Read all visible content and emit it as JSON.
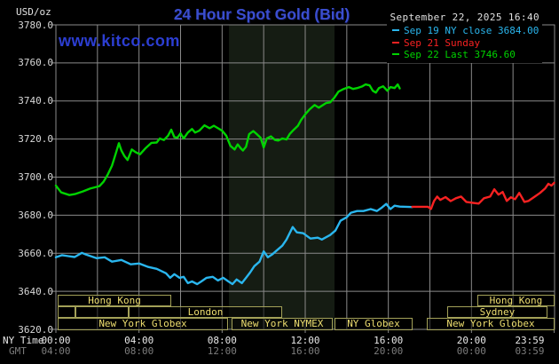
{
  "header": {
    "unit": "USD/oz",
    "title": "24 Hour Spot Gold (Bid)",
    "datetime": "September 22, 2025 16:40",
    "watermark": "www.kitco.com"
  },
  "legend": [
    {
      "label": "Sep 19 NY close 3684.00",
      "color": "#2ab6ee"
    },
    {
      "label": "Sep 21 Sunday",
      "color": "#f82222"
    },
    {
      "label": "Sep 22 Last 3746.60",
      "color": "#00d300"
    }
  ],
  "axes": {
    "ny_label": "NY Time",
    "gmt_label": "GMT"
  },
  "colors": {
    "background": "#000000",
    "grid": "#8a8a8a",
    "nymex_band": "#151c13",
    "session_border": "#a3a158",
    "session_text": "#eede70",
    "title_blue": "#3a4ed0",
    "watermark_blue": "#2c3ed2"
  },
  "chart_data": {
    "type": "line",
    "title": "24 Hour Spot Gold (Bid)",
    "ylabel": "USD/oz",
    "ylim": [
      3620,
      3780
    ],
    "xlim_hours": [
      0,
      24
    ],
    "grid": true,
    "y_axis": {
      "tick_values": [
        3780,
        3760,
        3740,
        3720,
        3700,
        3680,
        3660,
        3640,
        3620
      ],
      "tick_labels": [
        "3780.0",
        "3760.0",
        "3740.0",
        "3720.0",
        "3700.0",
        "3680.0",
        "3660.0",
        "3640.0",
        "3620.0"
      ],
      "grid_interval": 20
    },
    "x_axis": {
      "tick_hours": [
        0,
        4,
        8,
        12,
        16,
        20,
        23.983
      ],
      "ny_time_ticks": [
        "00:00",
        "04:00",
        "08:00",
        "12:00",
        "16:00",
        "20:00",
        "23:59"
      ],
      "gmt_ticks": [
        "04:00",
        "08:00",
        "12:00",
        "16:00",
        "20:00",
        "00:00",
        "03:59"
      ],
      "grid_interval_hours": 2
    },
    "nymex_session_band": {
      "start_hour": 8.33,
      "end_hour": 13.41
    },
    "series": [
      {
        "name": "Sep 19 NY close",
        "close_value": 3684.0,
        "color": "#2ab6ee",
        "points": [
          [
            0,
            3657.9
          ],
          [
            0.3,
            3659
          ],
          [
            0.6,
            3658.5
          ],
          [
            0.9,
            3658
          ],
          [
            1.25,
            3660.2
          ],
          [
            1.45,
            3659.3
          ],
          [
            1.95,
            3657.4
          ],
          [
            2.35,
            3657.9
          ],
          [
            2.7,
            3655.6
          ],
          [
            3.15,
            3656.5
          ],
          [
            3.6,
            3654.2
          ],
          [
            4,
            3654.6
          ],
          [
            4.45,
            3652.8
          ],
          [
            4.85,
            3651.8
          ],
          [
            5.3,
            3649.5
          ],
          [
            5.5,
            3647.1
          ],
          [
            5.7,
            3649
          ],
          [
            5.95,
            3647.1
          ],
          [
            6.15,
            3647.6
          ],
          [
            6.35,
            3644.3
          ],
          [
            6.55,
            3645.2
          ],
          [
            6.8,
            3643.8
          ],
          [
            7,
            3645.2
          ],
          [
            7.25,
            3647.1
          ],
          [
            7.55,
            3647.6
          ],
          [
            7.8,
            3645.7
          ],
          [
            8.05,
            3647.1
          ],
          [
            8.3,
            3645.2
          ],
          [
            8.5,
            3643.8
          ],
          [
            8.7,
            3646.2
          ],
          [
            8.95,
            3644.3
          ],
          [
            9.15,
            3647.1
          ],
          [
            9.35,
            3649.9
          ],
          [
            9.55,
            3653.2
          ],
          [
            9.8,
            3655.6
          ],
          [
            10,
            3661
          ],
          [
            10.2,
            3657.9
          ],
          [
            10.4,
            3659.3
          ],
          [
            10.6,
            3661.2
          ],
          [
            10.9,
            3664
          ],
          [
            11.1,
            3667.2
          ],
          [
            11.4,
            3673.8
          ],
          [
            11.6,
            3671
          ],
          [
            11.9,
            3670.5
          ],
          [
            12.25,
            3667.7
          ],
          [
            12.6,
            3668.2
          ],
          [
            12.8,
            3667.2
          ],
          [
            13.2,
            3669.6
          ],
          [
            13.45,
            3671.9
          ],
          [
            13.7,
            3677.1
          ],
          [
            14,
            3678.9
          ],
          [
            14.2,
            3681.3
          ],
          [
            14.5,
            3682.2
          ],
          [
            14.8,
            3682.2
          ],
          [
            15.15,
            3683.2
          ],
          [
            15.45,
            3682.2
          ],
          [
            15.7,
            3684.1
          ],
          [
            15.9,
            3685.9
          ],
          [
            16.1,
            3683.2
          ],
          [
            16.3,
            3685
          ],
          [
            16.55,
            3684.5
          ],
          [
            17.15,
            3684.3
          ]
        ]
      },
      {
        "name": "Sep 21 Sunday",
        "color": "#f82222",
        "points": [
          [
            17.15,
            3684.4
          ],
          [
            17.9,
            3684.4
          ],
          [
            18.05,
            3683.3
          ],
          [
            18.2,
            3687.5
          ],
          [
            18.35,
            3689.8
          ],
          [
            18.5,
            3688
          ],
          [
            18.75,
            3689.5
          ],
          [
            19,
            3687.4
          ],
          [
            19.25,
            3688.9
          ],
          [
            19.5,
            3689.8
          ],
          [
            19.75,
            3687
          ],
          [
            20.05,
            3686.5
          ],
          [
            20.35,
            3686.1
          ],
          [
            20.6,
            3688.9
          ],
          [
            20.9,
            3689.8
          ],
          [
            21.1,
            3693.6
          ],
          [
            21.3,
            3690.8
          ],
          [
            21.5,
            3692.2
          ],
          [
            21.7,
            3687.5
          ],
          [
            21.9,
            3689.4
          ],
          [
            22.1,
            3688.4
          ],
          [
            22.3,
            3691.7
          ],
          [
            22.55,
            3687
          ],
          [
            22.75,
            3687.5
          ],
          [
            23.05,
            3689.8
          ],
          [
            23.3,
            3691.7
          ],
          [
            23.55,
            3694.1
          ],
          [
            23.7,
            3696.5
          ],
          [
            23.85,
            3695.5
          ],
          [
            23.98,
            3697
          ]
        ]
      },
      {
        "name": "Sep 22 Last",
        "last_value": 3746.6,
        "color": "#00d300",
        "points": [
          [
            0,
            3695.5
          ],
          [
            0.25,
            3692
          ],
          [
            0.65,
            3690.6
          ],
          [
            0.95,
            3691.2
          ],
          [
            1.3,
            3692.5
          ],
          [
            1.65,
            3694
          ],
          [
            2.1,
            3695.3
          ],
          [
            2.3,
            3697.7
          ],
          [
            2.5,
            3701.4
          ],
          [
            2.7,
            3706
          ],
          [
            2.87,
            3712
          ],
          [
            3.03,
            3717.8
          ],
          [
            3.15,
            3714
          ],
          [
            3.3,
            3711
          ],
          [
            3.45,
            3709
          ],
          [
            3.65,
            3714.5
          ],
          [
            3.85,
            3713
          ],
          [
            4.05,
            3712
          ],
          [
            4.3,
            3715
          ],
          [
            4.6,
            3718
          ],
          [
            4.85,
            3718.2
          ],
          [
            5,
            3720.3
          ],
          [
            5.2,
            3719.5
          ],
          [
            5.4,
            3721.8
          ],
          [
            5.55,
            3724.9
          ],
          [
            5.7,
            3721
          ],
          [
            5.85,
            3720.7
          ],
          [
            6,
            3723
          ],
          [
            6.15,
            3720.3
          ],
          [
            6.35,
            3723.4
          ],
          [
            6.55,
            3725.3
          ],
          [
            6.7,
            3723.4
          ],
          [
            6.9,
            3724.4
          ],
          [
            7.15,
            3727.2
          ],
          [
            7.4,
            3725.7
          ],
          [
            7.6,
            3727
          ],
          [
            7.8,
            3725.7
          ],
          [
            8,
            3724.4
          ],
          [
            8.2,
            3721.8
          ],
          [
            8.4,
            3716.4
          ],
          [
            8.6,
            3714.5
          ],
          [
            8.75,
            3717.2
          ],
          [
            8.9,
            3715.1
          ],
          [
            9,
            3714
          ],
          [
            9.15,
            3716
          ],
          [
            9.3,
            3722.6
          ],
          [
            9.5,
            3724.2
          ],
          [
            9.7,
            3722.3
          ],
          [
            9.85,
            3720.7
          ],
          [
            10,
            3715.6
          ],
          [
            10.15,
            3720.3
          ],
          [
            10.35,
            3721.4
          ],
          [
            10.55,
            3719.5
          ],
          [
            10.7,
            3719.2
          ],
          [
            10.9,
            3720.3
          ],
          [
            11.1,
            3719.8
          ],
          [
            11.25,
            3722.6
          ],
          [
            11.45,
            3724.9
          ],
          [
            11.65,
            3727
          ],
          [
            11.8,
            3730
          ],
          [
            12,
            3733
          ],
          [
            12.2,
            3735.5
          ],
          [
            12.45,
            3737.9
          ],
          [
            12.65,
            3736.5
          ],
          [
            13,
            3738.9
          ],
          [
            13.2,
            3739.3
          ],
          [
            13.4,
            3741.7
          ],
          [
            13.6,
            3744.9
          ],
          [
            13.85,
            3746.3
          ],
          [
            14.1,
            3747.3
          ],
          [
            14.3,
            3746.3
          ],
          [
            14.5,
            3746.8
          ],
          [
            14.75,
            3747.7
          ],
          [
            14.9,
            3748.7
          ],
          [
            15.1,
            3748.2
          ],
          [
            15.25,
            3745.4
          ],
          [
            15.4,
            3744.4
          ],
          [
            15.55,
            3746.8
          ],
          [
            15.75,
            3747.7
          ],
          [
            15.95,
            3745.4
          ],
          [
            16.1,
            3747.3
          ],
          [
            16.3,
            3746.8
          ],
          [
            16.45,
            3748.7
          ],
          [
            16.55,
            3746.6
          ]
        ]
      }
    ],
    "market_sessions": [
      {
        "row": 0,
        "label": "Hong Kong",
        "start_hour": 0.09,
        "end_hour": 5.55
      },
      {
        "row": 0,
        "label": "Hong Kong",
        "start_hour": 20.28,
        "end_hour": 24
      },
      {
        "row": 1,
        "label": "",
        "start_hour": 0.09,
        "end_hour": 0.94
      },
      {
        "row": 1,
        "label": "",
        "start_hour": 0.94,
        "end_hour": 3.5
      },
      {
        "row": 1,
        "label": "London",
        "start_hour": 3.5,
        "end_hour": 10.89
      },
      {
        "row": 1,
        "label": "Sydney",
        "start_hour": 18.83,
        "end_hour": 23.66
      },
      {
        "row": 2,
        "label": "New York Globex",
        "start_hour": 0.09,
        "end_hour": 8.28
      },
      {
        "row": 2,
        "label": "New York NYMEX",
        "start_hour": 8.46,
        "end_hour": 13.32
      },
      {
        "row": 2,
        "label": "NY Globex",
        "start_hour": 13.41,
        "end_hour": 17.17
      },
      {
        "row": 2,
        "label": "New York Globex",
        "start_hour": 17.85,
        "end_hour": 24
      }
    ]
  }
}
